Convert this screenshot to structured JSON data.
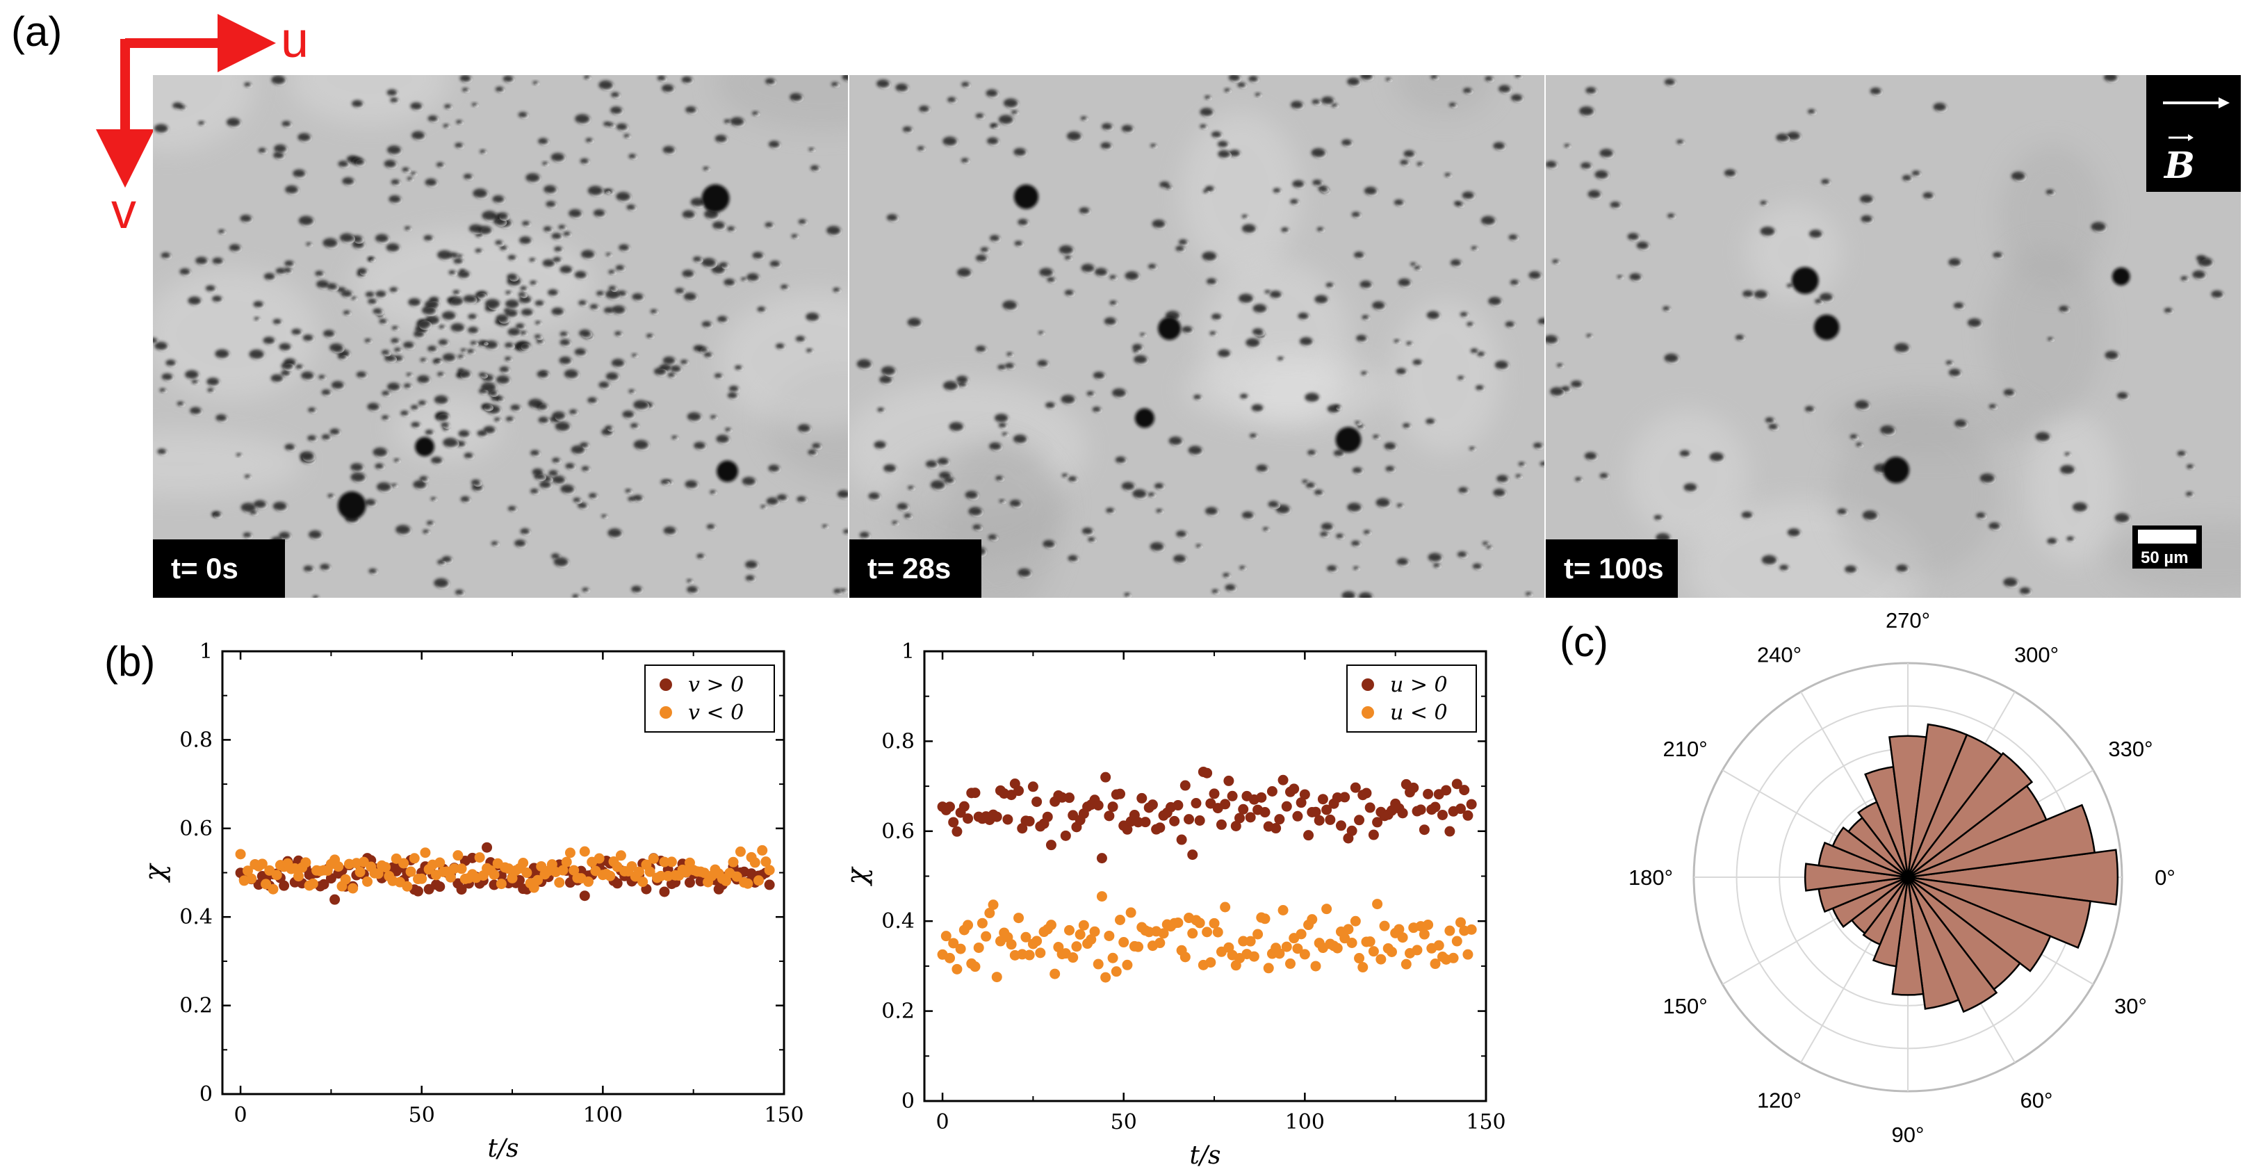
{
  "panels": {
    "a_label": "(a)",
    "b_label": "(b)",
    "c_label": "(c)"
  },
  "axes_indicator": {
    "u_label": "u",
    "v_label": "v",
    "color": "#ee1c1c"
  },
  "micrographs": [
    {
      "time_label": "t= 0s",
      "density": 1.0
    },
    {
      "time_label": "t= 28s",
      "density": 0.55
    },
    {
      "time_label": "t= 100s",
      "density": 0.22
    }
  ],
  "field_indicator": {
    "label": "B"
  },
  "scale_bar": {
    "label": "50 µm"
  },
  "colors": {
    "dark_series": "#8b2a14",
    "light_series": "#f08a24",
    "rose_fill": "#b87c6a",
    "grid": "#d8d8d8"
  },
  "chart_data": [
    {
      "type": "scatter",
      "xlabel": "t/s",
      "ylabel": "χ",
      "xlim": [
        -5,
        150
      ],
      "ylim": [
        0,
        1
      ],
      "xticks": [
        "0",
        "50",
        "100",
        "150"
      ],
      "yticks": [
        "0",
        "0.2",
        "0.4",
        "0.6",
        "0.8",
        "1"
      ],
      "legend_position": "top-right",
      "series": [
        {
          "name": "v > 0",
          "color": "#8b2a14",
          "n_points": 147,
          "mean": 0.495,
          "spread": 0.02
        },
        {
          "name": "v < 0",
          "color": "#f08a24",
          "n_points": 147,
          "mean": 0.505,
          "spread": 0.02
        }
      ]
    },
    {
      "type": "scatter",
      "xlabel": "t/s",
      "ylabel": "χ",
      "xlim": [
        -5,
        150
      ],
      "ylim": [
        0,
        1
      ],
      "xticks": [
        "0",
        "50",
        "100",
        "150"
      ],
      "yticks": [
        "0",
        "0.2",
        "0.4",
        "0.6",
        "0.8",
        "1"
      ],
      "legend_position": "top-right",
      "series": [
        {
          "name": "u > 0",
          "color": "#8b2a14",
          "n_points": 147,
          "mean": 0.645,
          "spread": 0.035
        },
        {
          "name": "u < 0",
          "color": "#f08a24",
          "n_points": 147,
          "mean": 0.355,
          "spread": 0.035
        }
      ]
    },
    {
      "type": "polar_histogram",
      "angle_labels": [
        "0°",
        "30°",
        "60°",
        "90°",
        "120°",
        "150°",
        "180°",
        "210°",
        "240°",
        "270°",
        "300°",
        "330°"
      ],
      "bin_width_deg": 15,
      "bins": [
        {
          "angle": 0,
          "value": 0.98
        },
        {
          "angle": 15,
          "value": 0.86
        },
        {
          "angle": 30,
          "value": 0.72
        },
        {
          "angle": 45,
          "value": 0.66
        },
        {
          "angle": 60,
          "value": 0.68
        },
        {
          "angle": 75,
          "value": 0.62
        },
        {
          "angle": 90,
          "value": 0.55
        },
        {
          "angle": 105,
          "value": 0.42
        },
        {
          "angle": 120,
          "value": 0.34
        },
        {
          "angle": 135,
          "value": 0.33
        },
        {
          "angle": 150,
          "value": 0.38
        },
        {
          "angle": 165,
          "value": 0.42
        },
        {
          "angle": 180,
          "value": 0.48
        },
        {
          "angle": 195,
          "value": 0.42
        },
        {
          "angle": 210,
          "value": 0.38
        },
        {
          "angle": 225,
          "value": 0.35
        },
        {
          "angle": 240,
          "value": 0.38
        },
        {
          "angle": 255,
          "value": 0.52
        },
        {
          "angle": 270,
          "value": 0.66
        },
        {
          "angle": 285,
          "value": 0.72
        },
        {
          "angle": 300,
          "value": 0.72
        },
        {
          "angle": 315,
          "value": 0.73
        },
        {
          "angle": 330,
          "value": 0.7
        },
        {
          "angle": 345,
          "value": 0.88
        }
      ]
    }
  ]
}
